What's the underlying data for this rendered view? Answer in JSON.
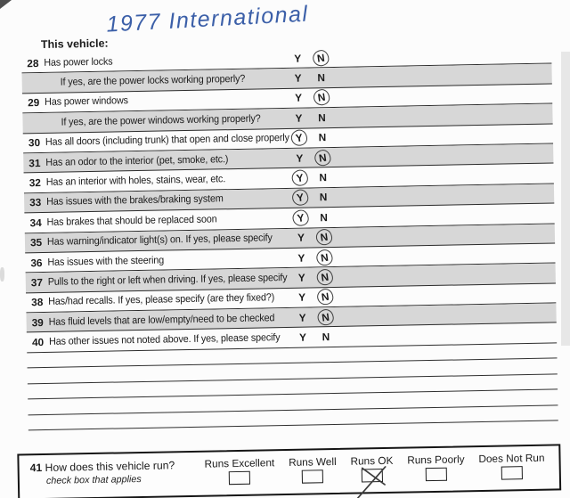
{
  "form": {
    "vehicle_label": "This vehicle:",
    "vehicle_value": "1977 International"
  },
  "yes_label": "Y",
  "no_label": "N",
  "questions": [
    {
      "num": "28",
      "text": "Has power locks",
      "answer": "N",
      "shaded": false,
      "sub": false
    },
    {
      "num": "",
      "text": "If yes, are the power locks working properly?",
      "answer": null,
      "shaded": true,
      "sub": true
    },
    {
      "num": "29",
      "text": "Has power windows",
      "answer": "N",
      "shaded": false,
      "sub": false
    },
    {
      "num": "",
      "text": "If yes, are the power windows working properly?",
      "answer": null,
      "shaded": true,
      "sub": true
    },
    {
      "num": "30",
      "text": "Has all doors (including trunk) that open and close properly",
      "answer": "Y",
      "shaded": false,
      "sub": false
    },
    {
      "num": "31",
      "text": "Has an odor to the interior (pet, smoke, etc.)",
      "answer": "N",
      "shaded": true,
      "sub": false
    },
    {
      "num": "32",
      "text": "Has an interior with holes, stains, wear, etc.",
      "answer": "Y",
      "shaded": false,
      "sub": false
    },
    {
      "num": "33",
      "text": "Has issues with the brakes/braking system",
      "answer": "Y",
      "shaded": true,
      "sub": false
    },
    {
      "num": "34",
      "text": "Has brakes that should be replaced soon",
      "answer": "Y",
      "shaded": false,
      "sub": false
    },
    {
      "num": "35",
      "text": "Has warning/indicator light(s) on.  If yes, please specify",
      "answer": "N",
      "shaded": true,
      "sub": false
    },
    {
      "num": "36",
      "text": "Has issues with the steering",
      "answer": "N",
      "shaded": false,
      "sub": false
    },
    {
      "num": "37",
      "text": "Pulls to the right or left when driving.  If yes, please specify",
      "answer": "N",
      "shaded": true,
      "sub": false
    },
    {
      "num": "38",
      "text": "Has/had recalls.  If yes, please specify (are they fixed?)",
      "answer": "N",
      "shaded": false,
      "sub": false
    },
    {
      "num": "39",
      "text": "Has fluid levels that are low/empty/need to be checked",
      "answer": "N",
      "shaded": true,
      "sub": false
    },
    {
      "num": "40",
      "text": "Has other issues not noted above.  If yes, please specify",
      "answer": null,
      "shaded": false,
      "sub": false
    }
  ],
  "notes": {
    "line_count": 5
  },
  "run_box": {
    "num": "41",
    "question": "How does this vehicle run?",
    "note": "check box that applies",
    "options": [
      {
        "label": "Runs Excellent",
        "checked": false
      },
      {
        "label": "Runs Well",
        "checked": false
      },
      {
        "label": "Runs OK",
        "checked": true
      },
      {
        "label": "Runs Poorly",
        "checked": false
      },
      {
        "label": "Does Not Run",
        "checked": false
      }
    ]
  },
  "colors": {
    "shaded_row": "#d7d7d7",
    "rule_line": "#2c2c2c",
    "ink_blue": "#3b5fa8",
    "text": "#1a1a1a",
    "circle_stroke": "#3e3e3e"
  }
}
